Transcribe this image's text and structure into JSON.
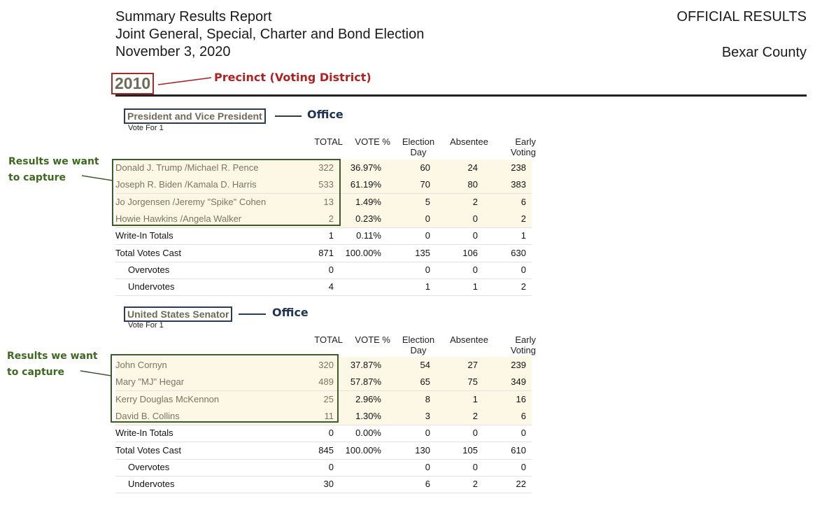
{
  "header": {
    "title": "Summary Results Report",
    "election": "Joint General, Special, Charter and Bond Election",
    "date": "November 3, 2020",
    "official": "OFFICIAL RESULTS",
    "county": "Bexar County"
  },
  "precinct": {
    "number": "2010",
    "label": "Precinct (Voting District)"
  },
  "columns": {
    "total": "TOTAL",
    "pct": "VOTE %",
    "election_day_1": "Election",
    "election_day_2": "Day",
    "absentee": "Absentee",
    "early_1": "Early",
    "early_2": "Voting"
  },
  "annotation": {
    "capture_1": "Results we want",
    "capture_2": "to capture",
    "office": "Office"
  },
  "offices": [
    {
      "name": "President and Vice President",
      "vote_for": "Vote For 1",
      "rows": [
        {
          "name": "Donald J. Trump /Michael R. Pence",
          "total": "322",
          "pct": "36.97%",
          "eday": "60",
          "abs": "24",
          "early": "238"
        },
        {
          "name": "Joseph R. Biden /Kamala D. Harris",
          "total": "533",
          "pct": "61.19%",
          "eday": "70",
          "abs": "80",
          "early": "383"
        },
        {
          "name": "Jo Jorgensen /Jeremy \"Spike\" Cohen",
          "total": "13",
          "pct": "1.49%",
          "eday": "5",
          "abs": "2",
          "early": "6"
        },
        {
          "name": "Howie Hawkins /Angela Walker",
          "total": "2",
          "pct": "0.23%",
          "eday": "0",
          "abs": "0",
          "early": "2"
        },
        {
          "name": "Write-In Totals",
          "total": "1",
          "pct": "0.11%",
          "eday": "0",
          "abs": "0",
          "early": "1"
        },
        {
          "name": "Total Votes Cast",
          "total": "871",
          "pct": "100.00%",
          "eday": "135",
          "abs": "106",
          "early": "630"
        },
        {
          "name": "Overvotes",
          "total": "0",
          "pct": "",
          "eday": "0",
          "abs": "0",
          "early": "0"
        },
        {
          "name": "Undervotes",
          "total": "4",
          "pct": "",
          "eday": "1",
          "abs": "1",
          "early": "2"
        }
      ]
    },
    {
      "name": "United States Senator",
      "vote_for": "Vote For 1",
      "rows": [
        {
          "name": "John Cornyn",
          "total": "320",
          "pct": "37.87%",
          "eday": "54",
          "abs": "27",
          "early": "239"
        },
        {
          "name": "Mary \"MJ\" Hegar",
          "total": "489",
          "pct": "57.87%",
          "eday": "65",
          "abs": "75",
          "early": "349"
        },
        {
          "name": "Kerry Douglas McKennon",
          "total": "25",
          "pct": "2.96%",
          "eday": "8",
          "abs": "1",
          "early": "16"
        },
        {
          "name": "David B. Collins",
          "total": "11",
          "pct": "1.30%",
          "eday": "3",
          "abs": "2",
          "early": "6"
        },
        {
          "name": "Write-In Totals",
          "total": "0",
          "pct": "0.00%",
          "eday": "0",
          "abs": "0",
          "early": "0"
        },
        {
          "name": "Total Votes Cast",
          "total": "845",
          "pct": "100.00%",
          "eday": "130",
          "abs": "105",
          "early": "610"
        },
        {
          "name": "Overvotes",
          "total": "0",
          "pct": "",
          "eday": "0",
          "abs": "0",
          "early": "0"
        },
        {
          "name": "Undervotes",
          "total": "30",
          "pct": "",
          "eday": "6",
          "abs": "2",
          "early": "22"
        }
      ]
    }
  ]
}
